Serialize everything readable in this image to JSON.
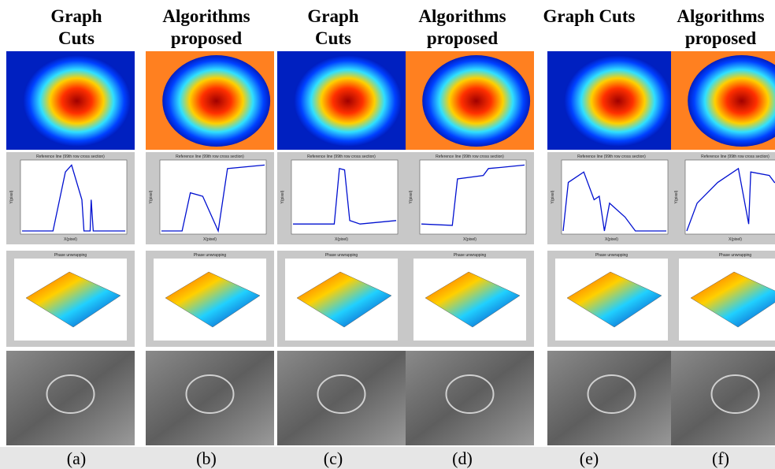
{
  "columns": [
    {
      "header": [
        "Graph",
        "Cuts"
      ],
      "plot_title": "Reference line (99th row cross section)",
      "plot_y_label": "Y(pixel)",
      "plot_x_label": "X(pixel)",
      "surface_title": "Phase unwrapping",
      "caption": "(a)"
    },
    {
      "header": [
        "Algorithms",
        "proposed"
      ],
      "plot_title": "Reference line (99th row cross section)",
      "plot_y_label": "Y(pixel)",
      "plot_x_label": "X(pixel)",
      "surface_title": "Phase unwrapping",
      "caption": "(b)"
    },
    {
      "header": [
        "Graph",
        "Cuts"
      ],
      "plot_title": "Reference line (99th row cross section)",
      "plot_y_label": "Y(pixel)",
      "plot_x_label": "X(pixel)",
      "surface_title": "Phase unwrapping",
      "caption": "(c)"
    },
    {
      "header": [
        "Algorithms",
        "proposed"
      ],
      "plot_title": "Reference line (99th row cross section)",
      "plot_y_label": "Y(pixel)",
      "plot_x_label": "X(pixel)",
      "surface_title": "Phase unwrapping",
      "caption": "(d)"
    },
    {
      "header": [
        "Graph Cuts"
      ],
      "plot_title": "Reference line (99th row cross section)",
      "plot_y_label": "Y(pixel)",
      "plot_x_label": "X(pixel)",
      "surface_title": "Phase unwrapping",
      "caption": "(e)"
    },
    {
      "header": [
        "Algorithms",
        "proposed"
      ],
      "plot_title": "Reference line (99th row cross section)",
      "plot_y_label": "Y(pixel)",
      "plot_x_label": "X(pixel)",
      "surface_title": "Phase unwrapping",
      "caption": "(f)"
    }
  ]
}
